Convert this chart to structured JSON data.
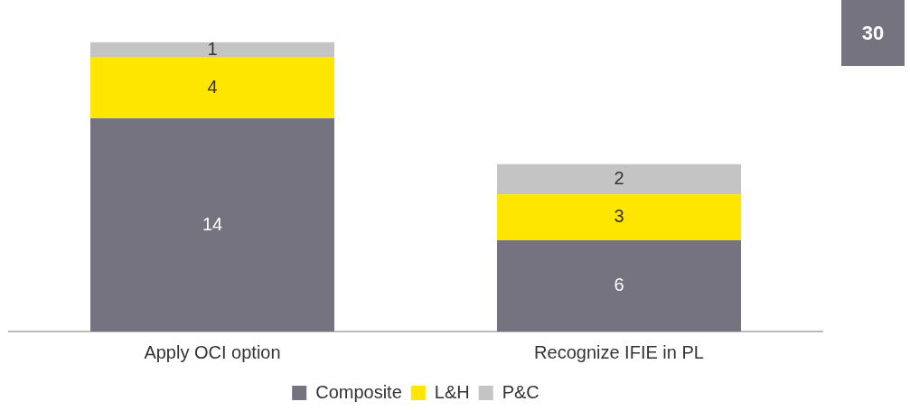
{
  "chart_data": {
    "type": "bar",
    "stacked": true,
    "categories": [
      "Apply OCI option",
      "Recognize IFIE in PL"
    ],
    "series": [
      {
        "name": "Composite",
        "color": "#75737f",
        "values": [
          14,
          6
        ]
      },
      {
        "name": "L&H",
        "color": "#ffe600",
        "values": [
          4,
          3
        ]
      },
      {
        "name": "P&C",
        "color": "#c4c4c4",
        "values": [
          1,
          2
        ]
      }
    ],
    "data_labels": true,
    "legend": "bottom",
    "grid": false,
    "tick_labels": "x",
    "annotations": [
      "30"
    ]
  }
}
